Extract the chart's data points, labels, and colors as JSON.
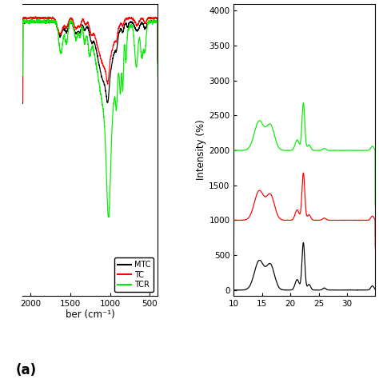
{
  "left_panel": {
    "xlabel": "ber (cm⁻¹)",
    "label_a": "(a)",
    "xmin": 400,
    "xmax": 2100,
    "legend": [
      "MTC",
      "TC",
      "TCR"
    ],
    "colors": [
      "black",
      "red",
      "#00ee00"
    ]
  },
  "right_panel": {
    "ylabel": "Intensity (%)",
    "xmin": 10,
    "xmax": 35,
    "yticks": [
      0,
      500,
      1000,
      1500,
      2000,
      2500,
      3000,
      3500,
      4000
    ],
    "xticks": [
      10,
      15,
      20,
      25,
      30
    ],
    "colors": [
      "black",
      "red",
      "#00ee00"
    ]
  }
}
